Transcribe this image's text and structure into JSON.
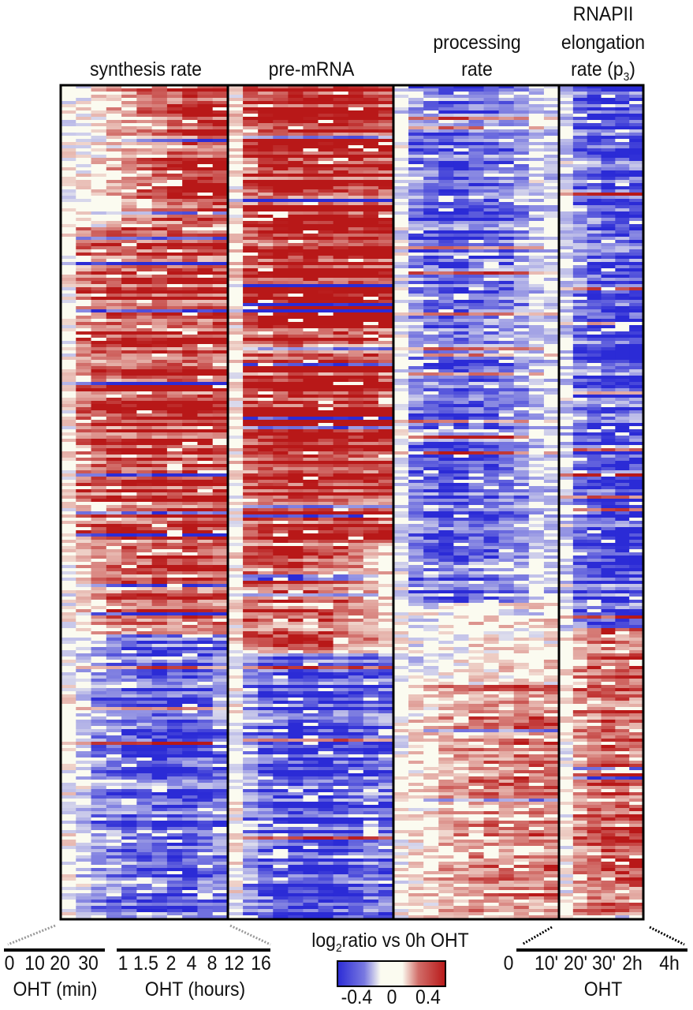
{
  "chart_data": {
    "type": "heatmap",
    "color_scale": {
      "min": -0.4,
      "max": 0.4,
      "low_color": "#2b2bd6",
      "mid_color": "#fbfbf0",
      "high_color": "#b81818",
      "label_pre": "log",
      "label_sub": "2",
      "label_post": "ratio vs 0h OHT",
      "ticks": [
        "-0.4",
        "0",
        "0.4"
      ]
    },
    "panels": [
      {
        "title": [
          "synthesis rate"
        ],
        "columns": [
          "0",
          "10",
          "20",
          "30",
          "1",
          "1.5",
          "2",
          "4",
          "8",
          "12",
          "16"
        ],
        "blocks": [
          {
            "from": 0,
            "to": 0.17,
            "means": [
              0,
              0.02,
              0.05,
              0.1,
              0.15,
              0.2,
              0.25,
              0.3,
              0.35,
              0.38,
              0.38
            ]
          },
          {
            "from": 0.17,
            "to": 0.55,
            "means": [
              0.02,
              0.25,
              0.3,
              0.35,
              0.38,
              0.38,
              0.4,
              0.4,
              0.42,
              0.42,
              0.42
            ]
          },
          {
            "from": 0.55,
            "to": 0.66,
            "means": [
              0,
              0.1,
              0.2,
              0.25,
              0.3,
              0.3,
              0.35,
              0.35,
              0.35,
              0.3,
              0.3
            ]
          },
          {
            "from": 0.66,
            "to": 1,
            "means": [
              0,
              -0.1,
              -0.2,
              -0.25,
              -0.3,
              -0.32,
              -0.35,
              -0.35,
              -0.35,
              -0.3,
              -0.25
            ]
          }
        ]
      },
      {
        "title": [
          "pre-mRNA"
        ],
        "columns": [
          "0",
          "10",
          "20",
          "30",
          "1",
          "1.5",
          "2",
          "4",
          "8",
          "12",
          "16"
        ],
        "blocks": [
          {
            "from": 0,
            "to": 0.55,
            "means": [
              0.05,
              0.35,
              0.4,
              0.42,
              0.45,
              0.45,
              0.45,
              0.45,
              0.42,
              0.42,
              0.4
            ]
          },
          {
            "from": 0.55,
            "to": 0.68,
            "means": [
              0.05,
              0.3,
              0.3,
              0.35,
              0.35,
              0.3,
              0.3,
              0.25,
              0.2,
              0.15,
              0.1
            ]
          },
          {
            "from": 0.68,
            "to": 1,
            "means": [
              0,
              -0.2,
              -0.3,
              -0.35,
              -0.4,
              -0.4,
              -0.4,
              -0.35,
              -0.35,
              -0.3,
              -0.3
            ]
          }
        ]
      },
      {
        "title": [
          "processing",
          "rate"
        ],
        "columns": [
          "0",
          "10",
          "20",
          "30",
          "1",
          "1.5",
          "2",
          "4",
          "8",
          "12",
          "16"
        ],
        "blocks": [
          {
            "from": 0,
            "to": 0.62,
            "means": [
              -0.05,
              -0.25,
              -0.3,
              -0.35,
              -0.35,
              -0.3,
              -0.3,
              -0.25,
              -0.2,
              -0.1,
              -0.1
            ]
          },
          {
            "from": 0.62,
            "to": 0.72,
            "means": [
              0,
              -0.05,
              -0.05,
              0,
              0,
              0.05,
              0.05,
              0.05,
              0.05,
              0.05,
              0.05
            ]
          },
          {
            "from": 0.72,
            "to": 1,
            "means": [
              0,
              0.05,
              0.1,
              0.15,
              0.15,
              0.2,
              0.2,
              0.2,
              0.25,
              0.25,
              0.25
            ]
          }
        ]
      },
      {
        "title": [
          "RNAPII",
          "elongation",
          "rate (p3)"
        ],
        "columns": [
          "0",
          "10'",
          "20'",
          "30'",
          "2h",
          "4h"
        ],
        "blocks": [
          {
            "from": 0,
            "to": 0.65,
            "means": [
              -0.1,
              -0.3,
              -0.35,
              -0.4,
              -0.4,
              -0.4
            ]
          },
          {
            "from": 0.65,
            "to": 1,
            "means": [
              0,
              0.2,
              0.25,
              0.3,
              0.3,
              0.3
            ]
          }
        ]
      }
    ],
    "axes": {
      "left_min_ticks": [
        "0",
        "10",
        "20",
        "30"
      ],
      "left_min_label": "OHT (min)",
      "left_hour_ticks": [
        "1",
        "1.5",
        "2",
        "4",
        "8",
        "12",
        "16"
      ],
      "left_hour_label": "OHT (hours)",
      "right_ticks": [
        "0",
        "10'",
        "20'",
        "30'",
        "2h",
        "4h"
      ],
      "right_label": "OHT"
    }
  }
}
